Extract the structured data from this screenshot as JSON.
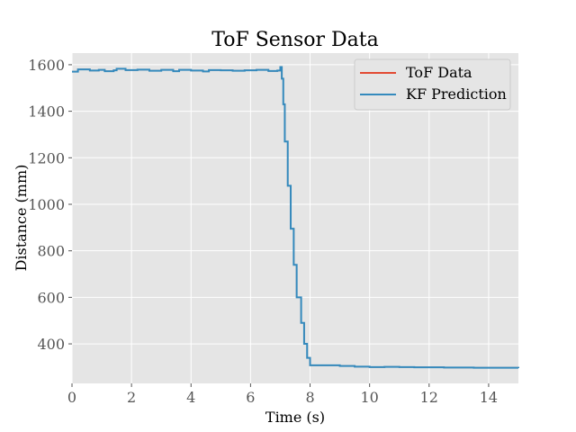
{
  "chart_data": {
    "type": "line",
    "title": "ToF Sensor Data",
    "xlabel": "Time (s)",
    "ylabel": "Distance (mm)",
    "xlim": [
      0,
      15
    ],
    "ylim": [
      230,
      1650
    ],
    "xticks": [
      0,
      2,
      4,
      6,
      8,
      10,
      12,
      14
    ],
    "yticks": [
      400,
      600,
      800,
      1000,
      1200,
      1400,
      1600
    ],
    "grid": true,
    "legend_position": "top-right",
    "series": [
      {
        "name": "ToF Data",
        "color": "#E24A33",
        "x": [
          0,
          0.2,
          0.6,
          0.9,
          1.1,
          1.4,
          1.5,
          1.8,
          2.2,
          2.6,
          3.0,
          3.4,
          3.6,
          4.0,
          4.4,
          4.6,
          5.0,
          5.4,
          5.8,
          6.2,
          6.6,
          6.9,
          7.0,
          7.05,
          7.1,
          7.15,
          7.25,
          7.3,
          7.35,
          7.45,
          7.55,
          7.6,
          7.7,
          7.8,
          7.9,
          8.0,
          8.5,
          9.0,
          9.5,
          10.0,
          10.5,
          11.0,
          11.5,
          12.0,
          12.5,
          13.0,
          13.5,
          14.0,
          14.5,
          15.0
        ],
        "values": [
          1570,
          1580,
          1575,
          1578,
          1572,
          1576,
          1583,
          1577,
          1579,
          1574,
          1578,
          1572,
          1578,
          1575,
          1571,
          1577,
          1576,
          1574,
          1576,
          1578,
          1573,
          1575,
          1590,
          1540,
          1430,
          1270,
          1080,
          1080,
          895,
          740,
          600,
          600,
          490,
          400,
          340,
          308,
          308,
          305,
          302,
          300,
          301,
          300,
          299,
          299,
          298,
          298,
          297,
          297,
          297,
          296
        ]
      },
      {
        "name": "KF Prediction",
        "color": "#348ABD",
        "x": [
          0,
          0.2,
          0.6,
          0.9,
          1.1,
          1.4,
          1.5,
          1.8,
          2.2,
          2.6,
          3.0,
          3.4,
          3.6,
          4.0,
          4.4,
          4.6,
          5.0,
          5.4,
          5.8,
          6.2,
          6.6,
          6.9,
          7.0,
          7.05,
          7.1,
          7.15,
          7.25,
          7.3,
          7.35,
          7.45,
          7.55,
          7.6,
          7.7,
          7.8,
          7.9,
          8.0,
          8.5,
          9.0,
          9.5,
          10.0,
          10.5,
          11.0,
          11.5,
          12.0,
          12.5,
          13.0,
          13.5,
          14.0,
          14.5,
          15.0
        ],
        "values": [
          1570,
          1580,
          1575,
          1578,
          1572,
          1576,
          1583,
          1577,
          1579,
          1574,
          1578,
          1572,
          1578,
          1575,
          1571,
          1577,
          1576,
          1574,
          1576,
          1578,
          1573,
          1575,
          1590,
          1540,
          1430,
          1270,
          1080,
          1080,
          895,
          740,
          600,
          600,
          490,
          400,
          340,
          308,
          308,
          305,
          302,
          300,
          301,
          300,
          299,
          299,
          298,
          298,
          297,
          297,
          297,
          296
        ]
      }
    ]
  }
}
